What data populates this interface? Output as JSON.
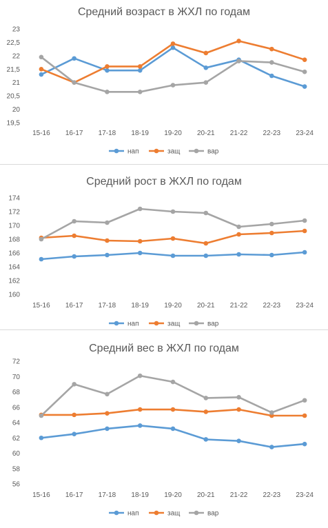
{
  "chart_data": [
    {
      "type": "line",
      "title": "Средний возраст в ЖХЛ по годам",
      "categories": [
        "15-16",
        "16-17",
        "17-18",
        "18-19",
        "19-20",
        "20-21",
        "21-22",
        "22-23",
        "23-24"
      ],
      "ylim": [
        19.5,
        23
      ],
      "yticks": [
        "19,5",
        "20",
        "20,5",
        "21",
        "21,5",
        "22",
        "22,5",
        "23"
      ],
      "grid": false,
      "legend_position": "bottom",
      "series": [
        {
          "name": "нап",
          "color": "#5b9bd5",
          "values": [
            21.3,
            21.9,
            21.45,
            21.45,
            22.3,
            21.55,
            21.85,
            21.25,
            20.85
          ]
        },
        {
          "name": "защ",
          "color": "#ed7d31",
          "values": [
            21.5,
            21.0,
            21.6,
            21.6,
            22.45,
            22.1,
            22.55,
            22.25,
            21.85
          ]
        },
        {
          "name": "вар",
          "color": "#a5a5a5",
          "values": [
            21.95,
            21.0,
            20.65,
            20.65,
            20.9,
            21.0,
            21.8,
            21.75,
            21.4
          ]
        }
      ]
    },
    {
      "type": "line",
      "title": "Средний рост в ЖХЛ по годам",
      "categories": [
        "15-16",
        "16-17",
        "17-18",
        "18-19",
        "19-20",
        "20-21",
        "21-22",
        "22-23",
        "23-24"
      ],
      "ylim": [
        160,
        174
      ],
      "yticks": [
        "160",
        "162",
        "164",
        "166",
        "168",
        "170",
        "172",
        "174"
      ],
      "grid": false,
      "legend_position": "bottom",
      "series": [
        {
          "name": "нап",
          "color": "#5b9bd5",
          "values": [
            165.1,
            165.5,
            165.7,
            166.0,
            165.6,
            165.6,
            165.8,
            165.7,
            166.1
          ]
        },
        {
          "name": "защ",
          "color": "#ed7d31",
          "values": [
            168.2,
            168.5,
            167.8,
            167.7,
            168.1,
            167.4,
            168.7,
            168.9,
            169.2
          ]
        },
        {
          "name": "вар",
          "color": "#a5a5a5",
          "values": [
            168.0,
            170.6,
            170.4,
            172.4,
            172.0,
            171.8,
            169.8,
            170.2,
            170.7
          ]
        }
      ]
    },
    {
      "type": "line",
      "title": "Средний вес в ЖХЛ по годам",
      "categories": [
        "15-16",
        "16-17",
        "17-18",
        "18-19",
        "19-20",
        "20-21",
        "21-22",
        "22-23",
        "23-24"
      ],
      "ylim": [
        56,
        72
      ],
      "yticks": [
        "56",
        "58",
        "60",
        "62",
        "64",
        "66",
        "68",
        "70",
        "72"
      ],
      "grid": false,
      "legend_position": "bottom",
      "series": [
        {
          "name": "нап",
          "color": "#5b9bd5",
          "values": [
            62.0,
            62.5,
            63.2,
            63.6,
            63.2,
            61.8,
            61.6,
            60.8,
            61.2
          ]
        },
        {
          "name": "защ",
          "color": "#ed7d31",
          "values": [
            65.0,
            65.0,
            65.2,
            65.7,
            65.7,
            65.4,
            65.7,
            64.9,
            64.9
          ]
        },
        {
          "name": "вар",
          "color": "#a5a5a5",
          "values": [
            64.9,
            69.0,
            67.7,
            70.1,
            69.3,
            67.2,
            67.3,
            65.3,
            66.9
          ]
        }
      ]
    }
  ]
}
